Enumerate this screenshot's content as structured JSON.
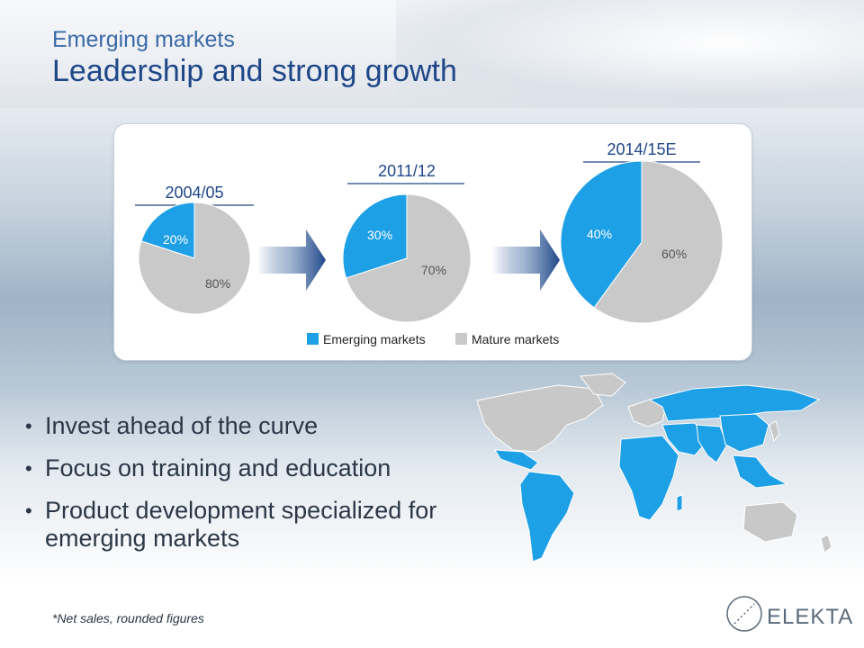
{
  "header": {
    "subtitle": "Emerging markets",
    "title": "Leadership and strong growth"
  },
  "colors": {
    "emerging": "#1ea0e6",
    "mature": "#c9c9c9",
    "title": "#1f4788",
    "period_label": "#1f4788"
  },
  "chart_data": {
    "type": "pie",
    "series_names": [
      "Emerging markets",
      "Mature markets"
    ],
    "legend_position": "bottom",
    "charts": [
      {
        "period": "2004/05",
        "values": [
          20,
          80
        ],
        "labels": [
          "20%",
          "80%"
        ]
      },
      {
        "period": "2011/12",
        "values": [
          30,
          70
        ],
        "labels": [
          "30%",
          "70%"
        ]
      },
      {
        "period": "2014/15E",
        "values": [
          40,
          60
        ],
        "labels": [
          "40%",
          "60%"
        ]
      }
    ]
  },
  "legend": {
    "emerging_label": "Emerging markets",
    "mature_label": "Mature markets"
  },
  "bullets": [
    "Invest ahead of the curve",
    "Focus on training and education",
    "Product development specialized for emerging markets"
  ],
  "footnote": "*Net sales, rounded figures",
  "logo": {
    "text": "ELEKTA"
  }
}
